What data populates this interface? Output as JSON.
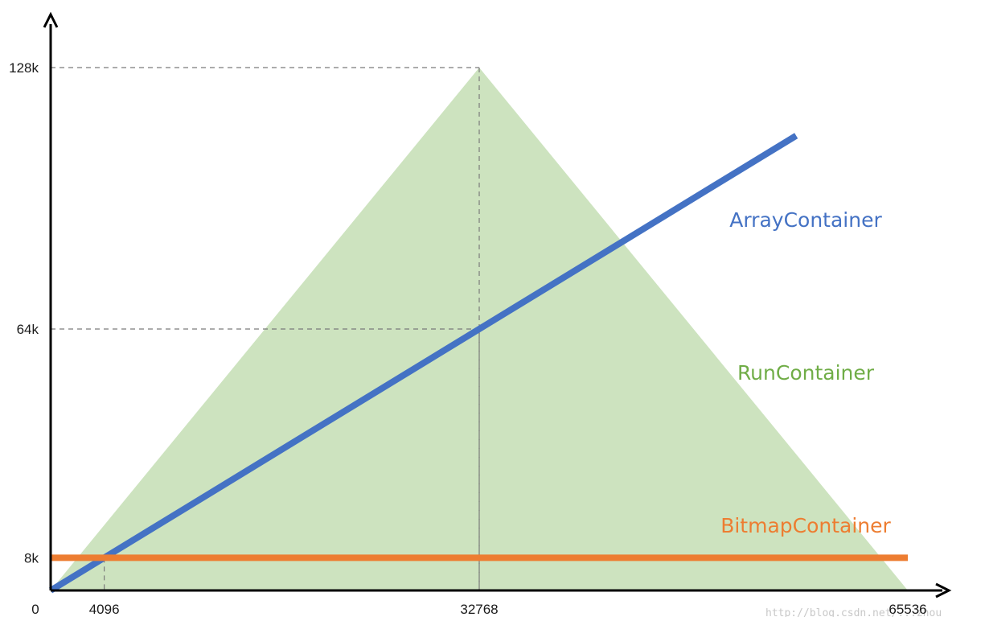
{
  "chart_data": {
    "type": "line",
    "title": "",
    "xlabel": "",
    "ylabel": "",
    "xlim": [
      0,
      65536
    ],
    "ylim": [
      0,
      131072
    ],
    "origin_label": "0",
    "x_ticks": [
      {
        "value": 4096,
        "label": "4096"
      },
      {
        "value": 32768,
        "label": "32768"
      },
      {
        "value": 65536,
        "label": "65536"
      }
    ],
    "y_ticks": [
      {
        "value": 8192,
        "label": "8k"
      },
      {
        "value": 65536,
        "label": "64k"
      },
      {
        "value": 131072,
        "label": "128k"
      }
    ],
    "guides": [
      {
        "x": 32768,
        "y": 131072
      },
      {
        "x": 32768,
        "y": 65536
      },
      {
        "x": 4096,
        "y": 8192
      }
    ],
    "series": [
      {
        "name": "RunContainer",
        "kind": "area",
        "color": "#cde3bf",
        "label_color": "#70ad47",
        "x": [
          0,
          32768,
          65536
        ],
        "y": [
          0,
          131072,
          0
        ]
      },
      {
        "name": "ArrayContainer",
        "kind": "line",
        "color": "#4472c4",
        "label_color": "#4472c4",
        "x": [
          0,
          57000
        ],
        "y": [
          0,
          114000
        ]
      },
      {
        "name": "BitmapContainer",
        "kind": "line",
        "color": "#ed7d31",
        "label_color": "#ed7d31",
        "x": [
          0,
          65536
        ],
        "y": [
          8192,
          8192
        ]
      }
    ],
    "grid": false,
    "legend": "none",
    "watermark": "http://blog.csdn.net/...zhou"
  }
}
